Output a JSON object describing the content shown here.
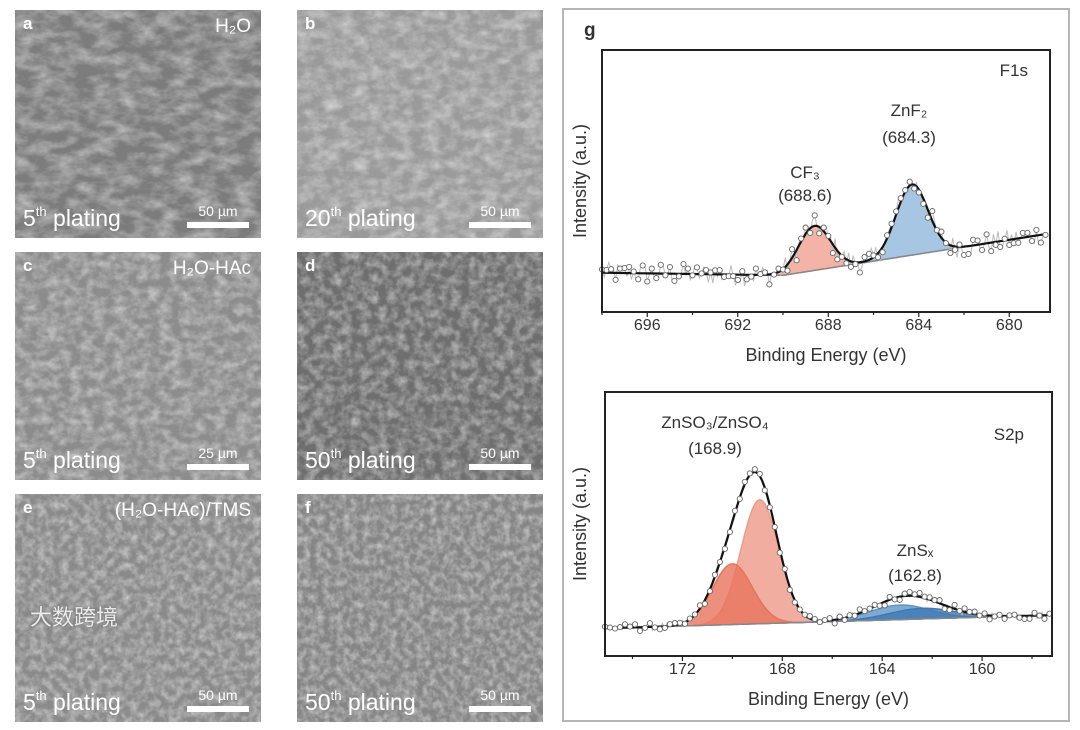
{
  "panels": [
    {
      "letter": "a",
      "title": "H₂O",
      "ordinal": "5",
      "suffix": "th",
      "plating": "plating",
      "scale": "50 µm",
      "tone": "#7c7c7c"
    },
    {
      "letter": "b",
      "title": "",
      "ordinal": "20",
      "suffix": "th",
      "plating": "plating",
      "scale": "50 µm",
      "tone": "#9a9a9a"
    },
    {
      "letter": "c",
      "title": "H₂O-HAc",
      "ordinal": "5",
      "suffix": "th",
      "plating": "plating",
      "scale": "25 µm",
      "tone": "#8c8c8c"
    },
    {
      "letter": "d",
      "title": "",
      "ordinal": "50",
      "suffix": "th",
      "plating": "plating",
      "scale": "50 µm",
      "tone": "#6e6e6e"
    },
    {
      "letter": "e",
      "title": "(H₂O-HAc)/TMS",
      "ordinal": "5",
      "suffix": "th",
      "plating": "plating",
      "scale": "50 µm",
      "tone": "#8a8a8a"
    },
    {
      "letter": "f",
      "title": "",
      "ordinal": "50",
      "suffix": "th",
      "plating": "plating",
      "scale": "50 µm",
      "tone": "#858585"
    }
  ],
  "watermark": "大数跨境",
  "chart_panel_letter": "g",
  "chart_data": [
    {
      "type": "line",
      "title": "F1s",
      "xlabel": "Binding Energy (eV)",
      "ylabel": "Intensity (a.u.)",
      "xlim": [
        698,
        678.2
      ],
      "ylim": [
        0,
        1
      ],
      "xticks": [
        696,
        692,
        688,
        684,
        680
      ],
      "xtick_labels": [
        "696",
        "692",
        "688",
        "684",
        "680"
      ],
      "baseline": [
        [
          698,
          0.15
        ],
        [
          690,
          0.14
        ],
        [
          678.2,
          0.3
        ]
      ],
      "peaks": [
        {
          "name": "CF₃",
          "position_label": "(688.6)",
          "center": 688.6,
          "amplitude": 0.17,
          "sigma": 0.7,
          "color": "#f0a090"
        },
        {
          "name": "ZnF₂",
          "position_label": "(684.3)",
          "center": 684.3,
          "amplitude": 0.27,
          "sigma": 0.7,
          "color": "#90b8dc"
        }
      ],
      "noise": 0.04,
      "step": 0.1
    },
    {
      "type": "line",
      "title": "S2p",
      "xlabel": "Binding Energy (eV)",
      "ylabel": "Intensity (a.u.)",
      "xlim": [
        175.1,
        157.2
      ],
      "ylim": [
        0,
        1
      ],
      "xticks": [
        172,
        168,
        164,
        160
      ],
      "xtick_labels": [
        "172",
        "168",
        "164",
        "160"
      ],
      "baseline": [
        [
          175.1,
          0.105
        ],
        [
          157.2,
          0.155
        ]
      ],
      "peaks": [
        {
          "name": "ZnSO₃/ZnSO₄",
          "position_label": "(168.9)",
          "center": 168.9,
          "amplitude": 0.47,
          "sigma": 0.75,
          "color": "#ee9a88"
        },
        {
          "name": "",
          "position_label": "",
          "center": 170.0,
          "amplitude": 0.23,
          "sigma": 0.8,
          "color": "#e8735c"
        },
        {
          "name": "ZnSₓ",
          "position_label": "(162.8)",
          "center": 163.3,
          "amplitude": 0.055,
          "sigma": 1.2,
          "color": "#5f95c8"
        },
        {
          "name": "",
          "position_label": "",
          "center": 162.4,
          "amplitude": 0.04,
          "sigma": 1.3,
          "color": "#3f78b4"
        }
      ],
      "noise": 0.015,
      "step": 0.1
    }
  ]
}
